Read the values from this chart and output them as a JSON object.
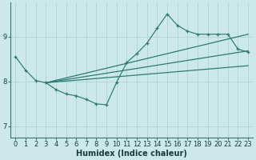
{
  "xlabel": "Humidex (Indice chaleur)",
  "xlim": [
    -0.5,
    23.5
  ],
  "ylim": [
    6.75,
    9.75
  ],
  "yticks": [
    7,
    8,
    9
  ],
  "xticks": [
    0,
    1,
    2,
    3,
    4,
    5,
    6,
    7,
    8,
    9,
    10,
    11,
    12,
    13,
    14,
    15,
    16,
    17,
    18,
    19,
    20,
    21,
    22,
    23
  ],
  "bg_color": "#cce8e8",
  "grid_color": "#b0d8d8",
  "line_color": "#2d7a72",
  "zigzag_x": [
    0,
    1,
    2,
    3,
    4,
    5,
    6,
    7,
    8,
    9,
    10,
    11,
    12,
    13,
    14,
    15,
    16,
    17,
    18,
    19,
    20,
    21,
    22,
    23
  ],
  "zigzag_y": [
    8.55,
    8.25,
    8.02,
    7.97,
    7.82,
    7.72,
    7.68,
    7.6,
    7.5,
    7.48,
    7.98,
    8.42,
    8.62,
    8.85,
    9.18,
    9.5,
    9.25,
    9.12,
    9.05,
    9.05,
    9.05,
    9.05,
    8.72,
    8.65
  ],
  "trend1_x": [
    3,
    23
  ],
  "trend1_y": [
    7.97,
    9.05
  ],
  "trend2_x": [
    3,
    23
  ],
  "trend2_y": [
    7.97,
    8.68
  ],
  "trend3_x": [
    3,
    23
  ],
  "trend3_y": [
    7.97,
    8.35
  ],
  "tick_fontsize": 6,
  "xlabel_fontsize": 7
}
